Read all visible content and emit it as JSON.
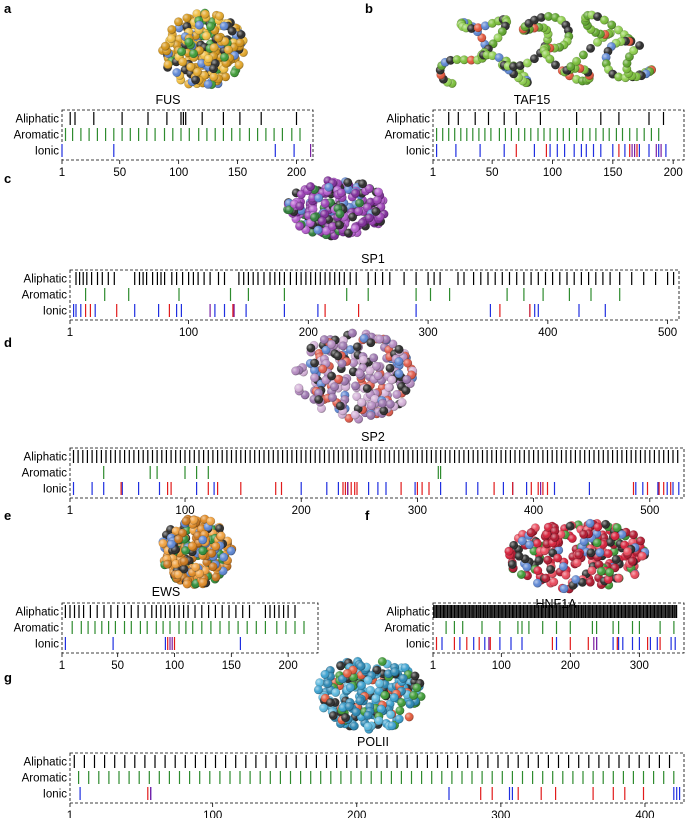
{
  "figure": {
    "track_labels": [
      "Aliphatic",
      "Aromatic",
      "Ionic"
    ],
    "colors": {
      "aliphatic": "#000000",
      "aromatic": "#2e8b2e",
      "ionic_positive": "#1f2fe0",
      "ionic_negative": "#e11b1b",
      "mixed": "#7a1fa2"
    },
    "panels": [
      {
        "letter": "a",
        "protein": "FUS",
        "length": 214,
        "ticks": [
          1,
          50,
          100,
          150,
          200
        ],
        "structure_colors": [
          "#e3a72a",
          "#d39418",
          "#f0bd3e",
          "#2b2b2b",
          "#3e9b36",
          "#5d86d3"
        ],
        "aliphatic": [
          8,
          12,
          28,
          52,
          74,
          90,
          102,
          104,
          106,
          120,
          138,
          152,
          170,
          200
        ],
        "aromatic": [
          4,
          10,
          17,
          24,
          31,
          38,
          45,
          52,
          59,
          66,
          73,
          80,
          88,
          95,
          102,
          109,
          117,
          124,
          131,
          138,
          145,
          152,
          160,
          167,
          174,
          181,
          188,
          196,
          203
        ],
        "ionic_pos": [
          1,
          45,
          182,
          198
        ],
        "ionic_neg": [],
        "ionic_mixed": [
          212
        ]
      },
      {
        "letter": "b",
        "protein": "TAF15",
        "length": 204,
        "ticks": [
          1,
          50,
          100,
          150,
          200
        ],
        "structure_colors": [
          "#7bbf3a",
          "#5ea52b",
          "#8fcf4e",
          "#2b2b2b",
          "#e2563b",
          "#5d86d3"
        ],
        "aliphatic": [
          14,
          22,
          36,
          47,
          60,
          70,
          90,
          120,
          140,
          155,
          180,
          192
        ],
        "aromatic": [
          4,
          9,
          14,
          19,
          24,
          29,
          34,
          39,
          44,
          49,
          56,
          61,
          66,
          72,
          77,
          82,
          88,
          93,
          98,
          104,
          109,
          114,
          120,
          125,
          131,
          136,
          142,
          147,
          153,
          158,
          164,
          170,
          176,
          182,
          188
        ],
        "ionic_pos": [
          4,
          20,
          40,
          60,
          85,
          98,
          104,
          110,
          118,
          124,
          128,
          134,
          140,
          150,
          160,
          172,
          180,
          188,
          194
        ],
        "ionic_neg": [
          70,
          95,
          155,
          164,
          170
        ],
        "ionic_mixed": [
          166,
          168,
          186,
          190
        ]
      },
      {
        "letter": "c",
        "protein": "SP1",
        "length": 507,
        "ticks": [
          1,
          100,
          200,
          300,
          400,
          500
        ],
        "structure_colors": [
          "#9a3fb4",
          "#7d2b98",
          "#b45ccd",
          "#2b2b2b",
          "#2f7f3a",
          "#5d86d3"
        ],
        "aliphatic": [
          6,
          9,
          12,
          15,
          19,
          24,
          28,
          33,
          38,
          55,
          59,
          62,
          65,
          70,
          74,
          77,
          80,
          86,
          90,
          95,
          100,
          104,
          108,
          113,
          118,
          125,
          130,
          142,
          146,
          150,
          154,
          158,
          163,
          168,
          172,
          176,
          180,
          185,
          190,
          194,
          198,
          202,
          206,
          210,
          214,
          218,
          222,
          226,
          230,
          235,
          240,
          250,
          256,
          262,
          268,
          280,
          290,
          300,
          305,
          310,
          325,
          330,
          338,
          344,
          350,
          356,
          362,
          368,
          374,
          380,
          386,
          392,
          398,
          404,
          410,
          416,
          422,
          428,
          434,
          440,
          446,
          452,
          460,
          470,
          480,
          490,
          500,
          505
        ],
        "aromatic": [
          14,
          30,
          50,
          92,
          135,
          150,
          180,
          232,
          250,
          290,
          302,
          318,
          366,
          380,
          396,
          418,
          436,
          460
        ],
        "ionic_pos": [
          4,
          6,
          10,
          22,
          55,
          75,
          90,
          94,
          122,
          130,
          148,
          180,
          208,
          290,
          352,
          385,
          389,
          392,
          426,
          448
        ],
        "ionic_neg": [
          14,
          18,
          40,
          84,
          137,
          214,
          242,
          360,
          385
        ],
        "ionic_mixed": [
          118,
          138
        ]
      },
      {
        "letter": "d",
        "protein": "SP2",
        "length": 526,
        "ticks": [
          1,
          100,
          200,
          300,
          400,
          500
        ],
        "structure_colors": [
          "#b48ac0",
          "#9a74ad",
          "#d4b1d8",
          "#2b2b2b",
          "#e05a4a",
          "#5d86d3"
        ],
        "aliphatic": [
          4,
          8,
          12,
          16,
          20,
          24,
          28,
          32,
          36,
          40,
          44,
          48,
          52,
          56,
          60,
          64,
          68,
          72,
          76,
          80,
          84,
          88,
          92,
          96,
          100,
          104,
          108,
          112,
          116,
          120,
          124,
          128,
          132,
          136,
          140,
          144,
          148,
          152,
          156,
          160,
          164,
          168,
          172,
          176,
          180,
          184,
          188,
          192,
          196,
          200,
          204,
          208,
          212,
          216,
          220,
          224,
          228,
          232,
          236,
          240,
          244,
          248,
          252,
          256,
          260,
          264,
          268,
          272,
          276,
          280,
          284,
          288,
          292,
          296,
          300,
          304,
          308,
          312,
          316,
          320,
          324,
          328,
          332,
          336,
          340,
          344,
          348,
          352,
          356,
          360,
          364,
          368,
          372,
          376,
          380,
          384,
          388,
          392,
          396,
          400,
          404,
          408,
          412,
          416,
          420,
          424,
          428,
          432,
          436,
          440,
          444,
          448,
          452,
          456,
          460,
          464,
          468,
          472,
          476,
          480,
          484,
          488,
          492,
          496,
          500,
          504,
          508,
          512,
          516,
          520,
          524
        ],
        "aromatic": [
          30,
          70,
          76,
          100,
          110,
          120,
          318,
          320
        ],
        "ionic_pos": [
          4,
          20,
          30,
          46,
          60,
          78,
          110,
          125,
          200,
          222,
          232,
          240,
          258,
          266,
          273,
          298,
          320,
          342,
          352,
          374,
          382,
          394,
          418,
          448,
          488,
          494,
          507,
          515,
          520,
          525
        ],
        "ionic_neg": [
          45,
          85,
          88,
          120,
          128,
          148,
          178,
          183,
          236,
          238,
          240,
          243,
          246,
          248,
          286,
          300,
          304,
          310,
          366,
          382,
          398,
          404,
          408,
          412,
          486,
          498,
          508,
          512,
          518
        ],
        "ionic_mixed": [
          240,
          406
        ]
      },
      {
        "letter": "e",
        "protein": "EWS",
        "length": 221,
        "ticks": [
          1,
          50,
          100,
          150,
          200
        ],
        "structure_colors": [
          "#e08a25",
          "#c8741a",
          "#f0a13f",
          "#2b2b2b",
          "#2f8f3a",
          "#5d86d3"
        ],
        "aliphatic": [
          4,
          8,
          12,
          16,
          20,
          26,
          32,
          38,
          44,
          50,
          56,
          62,
          68,
          74,
          80,
          84,
          88,
          92,
          96,
          100,
          104,
          108,
          112,
          118,
          124,
          130,
          136,
          142,
          148,
          154,
          160,
          166,
          180,
          184,
          188,
          192,
          196,
          200,
          206
        ],
        "aromatic": [
          10,
          18,
          24,
          30,
          36,
          42,
          48,
          56,
          62,
          70,
          76,
          84,
          90,
          96,
          104,
          110,
          116,
          124,
          132,
          140,
          148,
          156,
          164,
          172,
          180,
          190,
          198,
          206,
          214
        ],
        "ionic_pos": [
          4,
          46,
          92,
          158
        ],
        "ionic_neg": [
          94,
          100
        ],
        "ionic_mixed": [
          96,
          98
        ]
      },
      {
        "letter": "f",
        "protein": "HNF1A",
        "length": 356,
        "ticks": [
          1,
          100,
          200,
          300
        ],
        "structure_colors": [
          "#d6203a",
          "#b0172e",
          "#ea4a5c",
          "#2b2b2b",
          "#3e9b36",
          "#5d86d3"
        ],
        "aliphatic": [
          2,
          4,
          6,
          8,
          10,
          12,
          14,
          16,
          18,
          20,
          22,
          24,
          26,
          28,
          30,
          32,
          34,
          36,
          38,
          40,
          42,
          44,
          46,
          48,
          50,
          52,
          54,
          56,
          58,
          60,
          62,
          64,
          66,
          68,
          70,
          72,
          74,
          76,
          78,
          80,
          82,
          84,
          86,
          88,
          90,
          92,
          94,
          96,
          98,
          100,
          102,
          104,
          106,
          108,
          110,
          112,
          114,
          116,
          118,
          120,
          122,
          124,
          126,
          128,
          130,
          132,
          134,
          136,
          138,
          140,
          142,
          144,
          146,
          148,
          150,
          152,
          154,
          156,
          158,
          160,
          162,
          164,
          166,
          168,
          170,
          172,
          174,
          176,
          178,
          180,
          182,
          184,
          186,
          188,
          190,
          192,
          194,
          196,
          198,
          200,
          202,
          204,
          206,
          208,
          210,
          212,
          214,
          216,
          218,
          220,
          222,
          224,
          226,
          228,
          230,
          232,
          234,
          236,
          238,
          240,
          242,
          244,
          246,
          248,
          250,
          252,
          254,
          256,
          258,
          260,
          262,
          264,
          266,
          268,
          270,
          272,
          274,
          276,
          278,
          280,
          282,
          284,
          286,
          288,
          290,
          292,
          294,
          296,
          298,
          300,
          302,
          304,
          306,
          308,
          310,
          312,
          314,
          316,
          318,
          320,
          322,
          324,
          326,
          328,
          330,
          332,
          334,
          336,
          338,
          340,
          342,
          344,
          346,
          348,
          350,
          352,
          354
        ],
        "aromatic": [
          20,
          32,
          44,
          72,
          98,
          124,
          130,
          140,
          160,
          180,
          200,
          232,
          238,
          262,
          270,
          290,
          300,
          330,
          350
        ],
        "ionic_pos": [
          14,
          40,
          60,
          76,
          98,
          114,
          130,
          180,
          238,
          262,
          270,
          276,
          290,
          300,
          316,
          326,
          346,
          352
        ],
        "ionic_neg": [
          6,
          32,
          50,
          68,
          84,
          174,
          200,
          226,
          268,
          312,
          330
        ],
        "ionic_mixed": [
          82,
          234,
          238
        ]
      },
      {
        "letter": "g",
        "protein": "POLII",
        "length": 425,
        "ticks": [
          1,
          100,
          200,
          300,
          400
        ],
        "structure_colors": [
          "#3aa0cf",
          "#2a86b2",
          "#5bb8de",
          "#2b2b2b",
          "#3e9b36",
          "#e25a3b"
        ],
        "aliphatic": [
          4,
          11,
          18,
          25,
          32,
          39,
          46,
          53,
          60,
          67,
          74,
          81,
          88,
          95,
          102,
          109,
          116,
          123,
          130,
          137,
          144,
          151,
          158,
          165,
          172,
          179,
          186,
          193,
          200,
          207,
          214,
          221,
          228,
          235,
          242,
          249,
          256,
          263,
          270,
          277,
          284,
          291,
          298,
          305,
          312,
          319,
          326,
          333,
          340,
          347,
          354,
          361,
          368,
          375,
          382,
          389,
          396,
          403,
          410,
          417
        ],
        "aromatic": [
          7,
          14,
          21,
          28,
          35,
          42,
          49,
          56,
          63,
          70,
          77,
          84,
          91,
          98,
          105,
          112,
          119,
          126,
          133,
          140,
          147,
          154,
          161,
          168,
          175,
          182,
          189,
          196,
          203,
          210,
          217,
          224,
          231,
          238,
          245,
          252,
          259,
          266,
          273,
          280,
          287,
          294,
          301,
          308,
          315,
          322,
          329,
          336,
          343,
          350,
          357,
          364,
          371,
          378,
          385,
          392,
          399,
          406,
          413,
          420
        ],
        "ionic_pos": [
          8,
          57,
          264,
          306,
          308,
          420,
          422,
          424
        ],
        "ionic_neg": [
          55,
          286,
          294,
          312,
          328,
          338,
          364,
          378,
          386,
          399
        ],
        "ionic_mixed": [
          57
        ]
      }
    ]
  }
}
